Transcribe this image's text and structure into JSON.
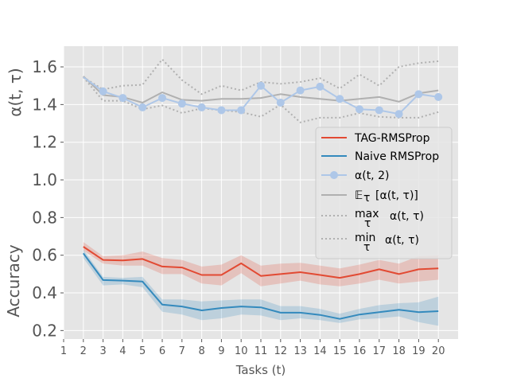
{
  "chart_data": {
    "type": "line",
    "xlabel": "Tasks (t)",
    "ylabel_top": "α(t, τ)",
    "ylabel_bottom": "Accuracy",
    "x_ticks": [
      1,
      2,
      3,
      4,
      5,
      6,
      7,
      8,
      9,
      10,
      11,
      12,
      13,
      14,
      15,
      16,
      17,
      18,
      19,
      20
    ],
    "xlim": [
      1,
      21
    ],
    "ylim": [
      0.155,
      1.71
    ],
    "y_ticks": [
      {
        "value": 0.2,
        "label": "0.2"
      },
      {
        "value": 0.4,
        "label": "0.4"
      },
      {
        "value": 0.6,
        "label": "0.6"
      },
      {
        "value": 0.8,
        "label": "0.8"
      },
      {
        "value": 1.0,
        "label": "1.0"
      },
      {
        "value": 1.2,
        "label": "1.2"
      },
      {
        "value": 1.4,
        "label": "1.4"
      },
      {
        "value": 1.6,
        "label": "1.6"
      }
    ],
    "colors": {
      "background": "#e5e5e5",
      "grid": "#ffffff",
      "tag": "#e24a33",
      "naive": "#348abd",
      "alpha2": "#aec7e8",
      "stats": "#b0b0b0"
    },
    "x": [
      2,
      3,
      4,
      5,
      6,
      7,
      8,
      9,
      10,
      11,
      12,
      13,
      14,
      15,
      16,
      17,
      18,
      19,
      20
    ],
    "series": [
      {
        "key": "tag",
        "name": "TAG-RMSProp",
        "values": [
          0.645,
          0.575,
          0.572,
          0.58,
          0.54,
          0.535,
          0.495,
          0.495,
          0.557,
          0.49,
          0.5,
          0.51,
          0.495,
          0.48,
          0.5,
          0.525,
          0.5,
          0.525,
          0.53
        ],
        "lower": [
          0.625,
          0.555,
          0.545,
          0.545,
          0.5,
          0.5,
          0.45,
          0.44,
          0.505,
          0.435,
          0.45,
          0.465,
          0.445,
          0.435,
          0.45,
          0.47,
          0.45,
          0.46,
          0.47
        ],
        "upper": [
          0.67,
          0.595,
          0.6,
          0.62,
          0.585,
          0.575,
          0.54,
          0.55,
          0.6,
          0.545,
          0.555,
          0.56,
          0.545,
          0.53,
          0.55,
          0.575,
          0.555,
          0.595,
          0.6
        ]
      },
      {
        "key": "naive",
        "name": "Naive RMSProp",
        "values": [
          0.61,
          0.468,
          0.465,
          0.46,
          0.338,
          0.328,
          0.307,
          0.32,
          0.328,
          0.323,
          0.295,
          0.295,
          0.283,
          0.262,
          0.285,
          0.298,
          0.31,
          0.298,
          0.303
        ],
        "lower": [
          0.585,
          0.44,
          0.445,
          0.43,
          0.3,
          0.285,
          0.255,
          0.265,
          0.285,
          0.28,
          0.255,
          0.265,
          0.255,
          0.24,
          0.26,
          0.265,
          0.275,
          0.245,
          0.225
        ],
        "upper": [
          0.63,
          0.485,
          0.48,
          0.485,
          0.365,
          0.365,
          0.355,
          0.36,
          0.365,
          0.365,
          0.33,
          0.33,
          0.315,
          0.29,
          0.315,
          0.335,
          0.345,
          0.35,
          0.38
        ]
      },
      {
        "key": "alpha2",
        "name": "α(t, 2)",
        "values": [
          1.545,
          1.47,
          1.435,
          1.385,
          1.435,
          1.405,
          1.385,
          1.37,
          1.37,
          1.5,
          1.41,
          1.475,
          1.495,
          1.43,
          1.375,
          1.37,
          1.35,
          1.455,
          1.44
        ]
      },
      {
        "key": "mean",
        "name": "[α(t, τ)]",
        "prefix": "𝔼",
        "subscript": "τ",
        "values": [
          1.55,
          1.45,
          1.44,
          1.41,
          1.465,
          1.425,
          1.42,
          1.43,
          1.43,
          1.435,
          1.455,
          1.44,
          1.43,
          1.42,
          1.43,
          1.44,
          1.415,
          1.46,
          1.475
        ]
      },
      {
        "key": "max",
        "name": "α(t, τ)",
        "prefix": "max",
        "subscript": "τ",
        "values": [
          1.545,
          1.48,
          1.5,
          1.505,
          1.64,
          1.53,
          1.455,
          1.5,
          1.475,
          1.52,
          1.51,
          1.52,
          1.54,
          1.485,
          1.56,
          1.5,
          1.6,
          1.62,
          1.63
        ]
      },
      {
        "key": "min",
        "name": "α(t, τ)",
        "prefix": "min",
        "subscript": "τ",
        "values": [
          1.545,
          1.42,
          1.42,
          1.375,
          1.395,
          1.355,
          1.38,
          1.37,
          1.36,
          1.335,
          1.4,
          1.305,
          1.33,
          1.33,
          1.355,
          1.335,
          1.33,
          1.33,
          1.36
        ]
      }
    ]
  }
}
